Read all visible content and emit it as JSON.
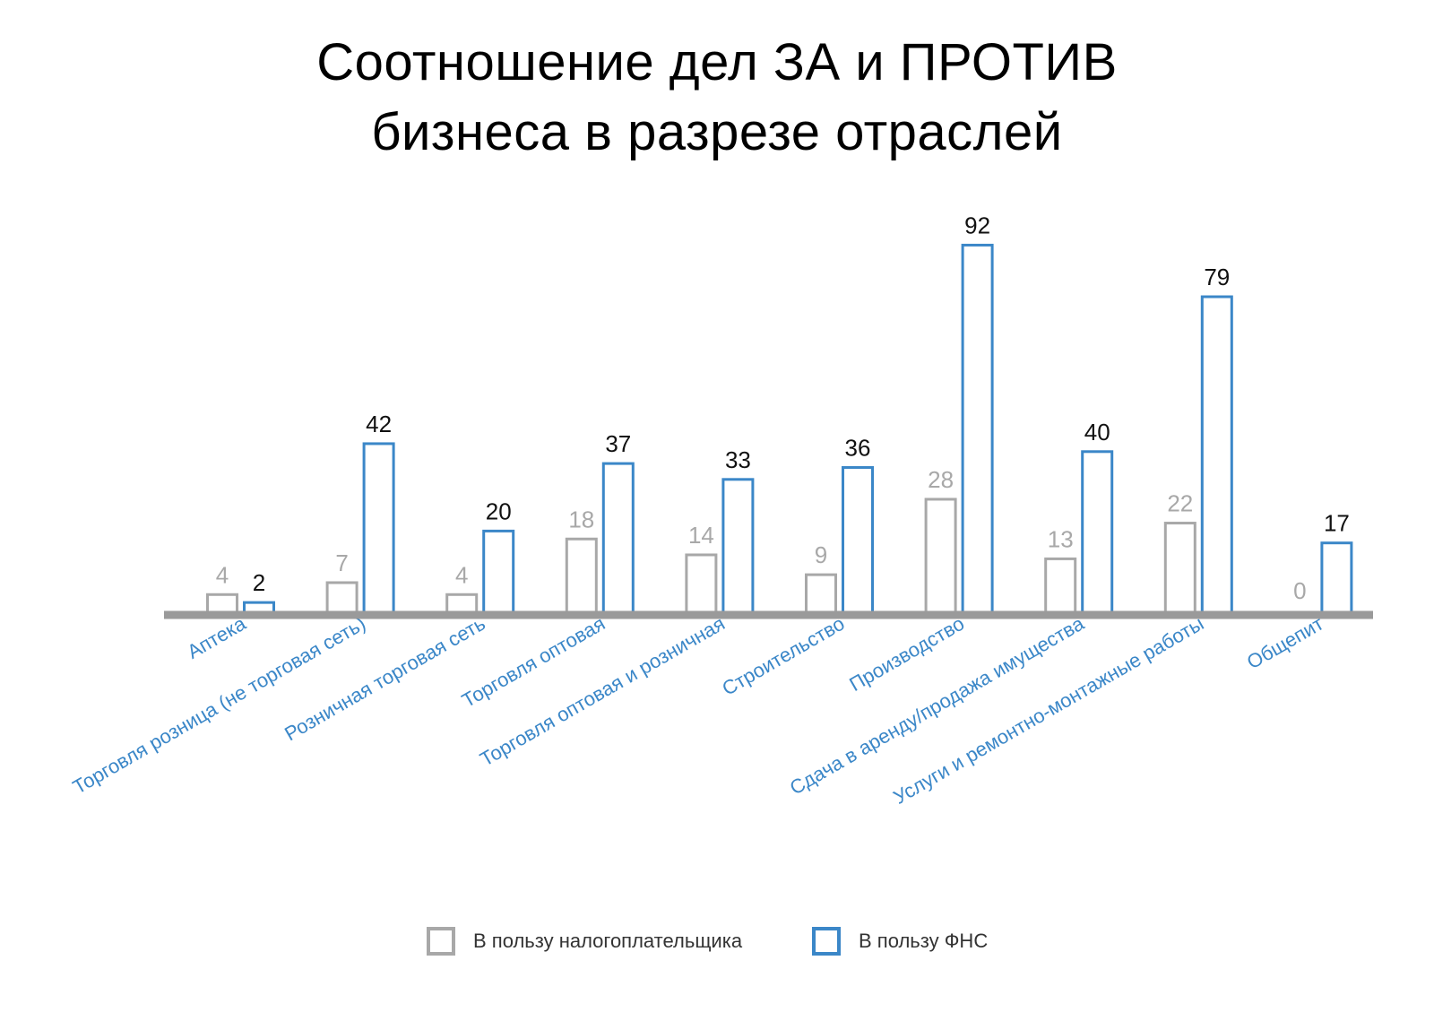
{
  "title": {
    "line1": "Соотношение дел ЗА и ПРОТИВ",
    "line2": "бизнеса в разрезе отраслей"
  },
  "colors": {
    "taxpayer": "#a8a8a8",
    "fns": "#3b87c8",
    "axis": "#9a9a9a",
    "category_label": "#3b87c8",
    "value_label_fns": "#111111"
  },
  "chart_data": {
    "type": "bar",
    "title": "Соотношение дел ЗА и ПРОТИВ бизнеса в разрезе отраслей",
    "categories": [
      "Аптека",
      "Торговля розница (не торговая сеть)",
      "Розничная торговая сеть",
      "Торговля оптовая",
      "Торговля оптовая и розничная",
      "Строительство",
      "Производство",
      "Сдача в аренду/продажа имущества",
      "Услуги и ремонтно-монтажные работы",
      "Общепит"
    ],
    "series": [
      {
        "name": "В пользу налогоплательщика",
        "values": [
          4,
          7,
          4,
          18,
          14,
          9,
          28,
          13,
          22,
          0
        ]
      },
      {
        "name": "В пользу ФНС",
        "values": [
          2,
          42,
          20,
          37,
          33,
          36,
          92,
          40,
          79,
          17
        ]
      }
    ],
    "xlabel": "",
    "ylabel": "",
    "ylim": [
      0,
      92
    ],
    "grid": false,
    "bar_style": "outline",
    "data_labels": true,
    "category_label_rotation": -30,
    "legend_position": "bottom-center"
  },
  "legend": {
    "taxpayer_label": "В пользу налогоплательщика",
    "fns_label": "В пользу ФНС"
  }
}
